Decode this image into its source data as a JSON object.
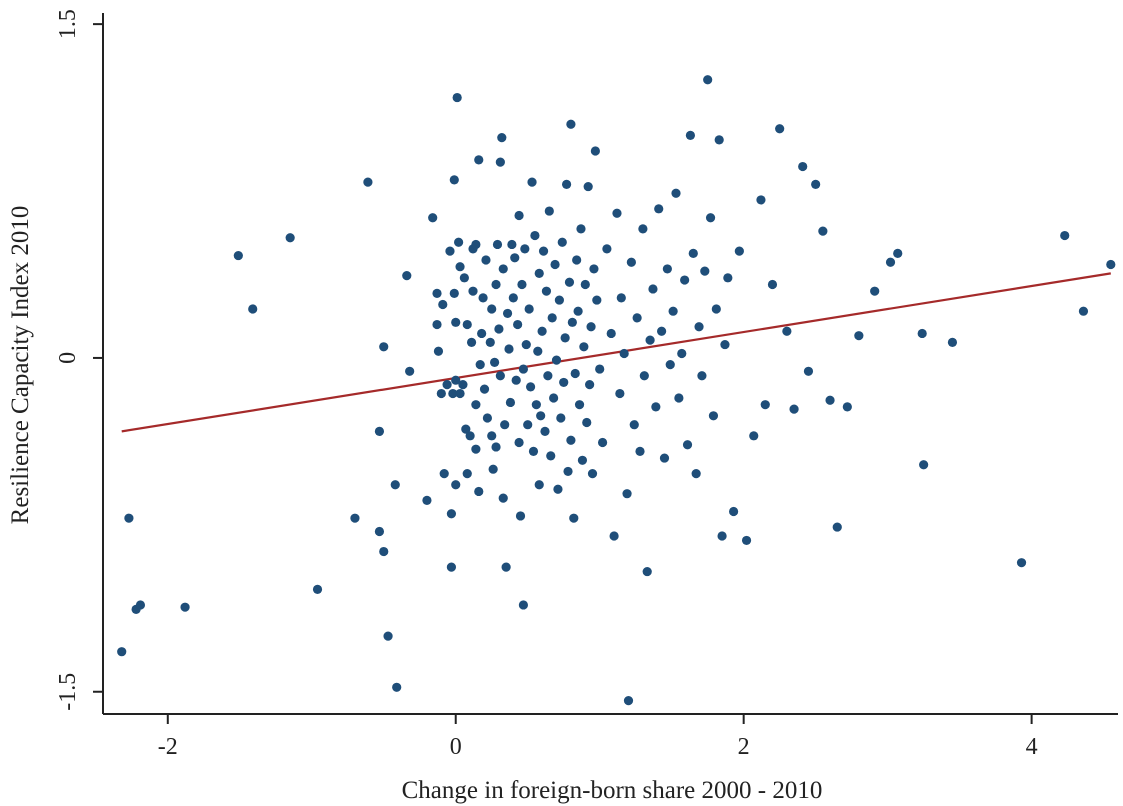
{
  "chart_data": {
    "type": "scatter",
    "xlabel": "Change in foreign-born share 2000 - 2010",
    "ylabel": "Resilience Capacity Index 2010",
    "xlim": [
      -2.45,
      4.6
    ],
    "ylim": [
      -1.6,
      1.55
    ],
    "x_ticks": [
      {
        "value": -2,
        "label": "-2"
      },
      {
        "value": 0,
        "label": "0"
      },
      {
        "value": 2,
        "label": "2"
      },
      {
        "value": 4,
        "label": "4"
      }
    ],
    "y_ticks": [
      {
        "value": -1.5,
        "label": "-1.5"
      },
      {
        "value": 0,
        "label": "0"
      },
      {
        "value": 1.5,
        "label": "1.5"
      }
    ],
    "grid": false,
    "legend": "none",
    "colors": {
      "points": "#1f4e79",
      "fit_line": "#a52a2a",
      "axis": "#222222"
    },
    "fit_line": {
      "x": [
        -2.32,
        4.55
      ],
      "y": [
        -0.33,
        0.38
      ]
    },
    "points": [
      [
        -2.32,
        -1.32
      ],
      [
        -2.27,
        -0.72
      ],
      [
        -2.22,
        -1.13
      ],
      [
        -2.19,
        -1.11
      ],
      [
        -1.88,
        -1.12
      ],
      [
        -1.51,
        0.46
      ],
      [
        -1.41,
        0.22
      ],
      [
        -1.15,
        0.54
      ],
      [
        -0.96,
        -1.04
      ],
      [
        -0.7,
        -0.72
      ],
      [
        -0.61,
        0.79
      ],
      [
        -0.53,
        -0.33
      ],
      [
        -0.53,
        -0.78
      ],
      [
        -0.5,
        0.05
      ],
      [
        -0.5,
        -0.87
      ],
      [
        -0.47,
        -1.25
      ],
      [
        -0.42,
        -0.57
      ],
      [
        -0.41,
        -1.48
      ],
      [
        -0.34,
        0.37
      ],
      [
        -0.32,
        -0.06
      ],
      [
        -0.2,
        -0.64
      ],
      [
        -0.16,
        0.63
      ],
      [
        -0.13,
        0.29
      ],
      [
        -0.13,
        0.15
      ],
      [
        -0.12,
        0.03
      ],
      [
        -0.1,
        -0.16
      ],
      [
        -0.09,
        0.24
      ],
      [
        -0.08,
        -0.52
      ],
      [
        -0.06,
        -0.12
      ],
      [
        -0.04,
        0.48
      ],
      [
        -0.03,
        -0.94
      ],
      [
        -0.03,
        -0.7
      ],
      [
        -0.02,
        -0.16
      ],
      [
        -0.01,
        0.29
      ],
      [
        -0.01,
        0.8
      ],
      [
        0.0,
        0.16
      ],
      [
        0.0,
        -0.1
      ],
      [
        0.0,
        -0.57
      ],
      [
        0.01,
        1.17
      ],
      [
        0.02,
        0.52
      ],
      [
        0.03,
        -0.16
      ],
      [
        0.03,
        0.41
      ],
      [
        0.05,
        -0.12
      ],
      [
        0.06,
        0.36
      ],
      [
        0.07,
        -0.32
      ],
      [
        0.08,
        0.15
      ],
      [
        0.08,
        -0.52
      ],
      [
        0.1,
        -0.35
      ],
      [
        0.11,
        0.07
      ],
      [
        0.12,
        0.3
      ],
      [
        0.12,
        0.49
      ],
      [
        0.14,
        -0.21
      ],
      [
        0.14,
        -0.41
      ],
      [
        0.14,
        0.51
      ],
      [
        0.16,
        0.89
      ],
      [
        0.16,
        -0.6
      ],
      [
        0.17,
        -0.03
      ],
      [
        0.18,
        0.11
      ],
      [
        0.19,
        0.27
      ],
      [
        0.2,
        -0.14
      ],
      [
        0.21,
        0.44
      ],
      [
        0.22,
        -0.27
      ],
      [
        0.24,
        0.07
      ],
      [
        0.25,
        0.22
      ],
      [
        0.25,
        -0.35
      ],
      [
        0.26,
        -0.5
      ],
      [
        0.27,
        -0.02
      ],
      [
        0.28,
        0.33
      ],
      [
        0.28,
        -0.4
      ],
      [
        0.29,
        0.51
      ],
      [
        0.3,
        0.13
      ],
      [
        0.31,
        -0.08
      ],
      [
        0.31,
        0.88
      ],
      [
        0.32,
        0.99
      ],
      [
        0.33,
        0.4
      ],
      [
        0.33,
        -0.63
      ],
      [
        0.34,
        -0.3
      ],
      [
        0.35,
        -0.94
      ],
      [
        0.36,
        0.2
      ],
      [
        0.37,
        0.04
      ],
      [
        0.38,
        -0.2
      ],
      [
        0.39,
        0.51
      ],
      [
        0.4,
        0.27
      ],
      [
        0.41,
        0.45
      ],
      [
        0.42,
        -0.1
      ],
      [
        0.43,
        0.15
      ],
      [
        0.44,
        -0.38
      ],
      [
        0.44,
        0.64
      ],
      [
        0.45,
        -0.71
      ],
      [
        0.46,
        0.33
      ],
      [
        0.47,
        -1.11
      ],
      [
        0.47,
        -0.05
      ],
      [
        0.48,
        0.49
      ],
      [
        0.49,
        0.06
      ],
      [
        0.5,
        -0.3
      ],
      [
        0.51,
        0.22
      ],
      [
        0.52,
        -0.13
      ],
      [
        0.53,
        0.79
      ],
      [
        0.54,
        -0.42
      ],
      [
        0.55,
        0.55
      ],
      [
        0.56,
        -0.21
      ],
      [
        0.57,
        0.03
      ],
      [
        0.58,
        0.38
      ],
      [
        0.58,
        -0.57
      ],
      [
        0.59,
        -0.26
      ],
      [
        0.6,
        0.12
      ],
      [
        0.61,
        0.48
      ],
      [
        0.62,
        -0.33
      ],
      [
        0.63,
        0.3
      ],
      [
        0.64,
        -0.08
      ],
      [
        0.65,
        0.66
      ],
      [
        0.66,
        -0.44
      ],
      [
        0.67,
        0.18
      ],
      [
        0.68,
        -0.18
      ],
      [
        0.69,
        0.42
      ],
      [
        0.7,
        -0.01
      ],
      [
        0.71,
        -0.59
      ],
      [
        0.72,
        0.26
      ],
      [
        0.73,
        -0.27
      ],
      [
        0.74,
        0.52
      ],
      [
        0.75,
        -0.11
      ],
      [
        0.76,
        0.09
      ],
      [
        0.77,
        0.78
      ],
      [
        0.78,
        -0.51
      ],
      [
        0.79,
        0.34
      ],
      [
        0.8,
        -0.37
      ],
      [
        0.8,
        1.05
      ],
      [
        0.81,
        0.16
      ],
      [
        0.82,
        -0.72
      ],
      [
        0.83,
        -0.07
      ],
      [
        0.84,
        0.44
      ],
      [
        0.85,
        0.21
      ],
      [
        0.86,
        -0.21
      ],
      [
        0.87,
        0.58
      ],
      [
        0.88,
        -0.46
      ],
      [
        0.89,
        0.05
      ],
      [
        0.9,
        0.33
      ],
      [
        0.91,
        -0.29
      ],
      [
        0.92,
        0.77
      ],
      [
        0.93,
        -0.12
      ],
      [
        0.94,
        0.14
      ],
      [
        0.95,
        -0.52
      ],
      [
        0.96,
        0.4
      ],
      [
        0.97,
        0.93
      ],
      [
        0.98,
        0.26
      ],
      [
        1.0,
        -0.05
      ],
      [
        1.02,
        -0.38
      ],
      [
        1.05,
        0.49
      ],
      [
        1.08,
        0.11
      ],
      [
        1.1,
        -0.8
      ],
      [
        1.12,
        0.65
      ],
      [
        1.14,
        -0.16
      ],
      [
        1.15,
        0.27
      ],
      [
        1.17,
        0.02
      ],
      [
        1.19,
        -0.61
      ],
      [
        1.2,
        -1.54
      ],
      [
        1.22,
        0.43
      ],
      [
        1.24,
        -0.3
      ],
      [
        1.26,
        0.18
      ],
      [
        1.28,
        -0.42
      ],
      [
        1.3,
        0.58
      ],
      [
        1.31,
        -0.08
      ],
      [
        1.33,
        -0.96
      ],
      [
        1.35,
        0.08
      ],
      [
        1.37,
        0.31
      ],
      [
        1.39,
        -0.22
      ],
      [
        1.41,
        0.67
      ],
      [
        1.43,
        0.12
      ],
      [
        1.45,
        -0.45
      ],
      [
        1.47,
        0.4
      ],
      [
        1.49,
        -0.03
      ],
      [
        1.51,
        0.21
      ],
      [
        1.53,
        0.74
      ],
      [
        1.55,
        -0.18
      ],
      [
        1.57,
        0.02
      ],
      [
        1.59,
        0.35
      ],
      [
        1.61,
        -0.39
      ],
      [
        1.63,
        1.0
      ],
      [
        1.65,
        0.47
      ],
      [
        1.67,
        -0.52
      ],
      [
        1.69,
        0.14
      ],
      [
        1.71,
        -0.08
      ],
      [
        1.73,
        0.39
      ],
      [
        1.75,
        1.25
      ],
      [
        1.77,
        0.63
      ],
      [
        1.79,
        -0.26
      ],
      [
        1.81,
        0.22
      ],
      [
        1.83,
        0.98
      ],
      [
        1.85,
        -0.8
      ],
      [
        1.87,
        0.06
      ],
      [
        1.89,
        0.36
      ],
      [
        1.93,
        -0.69
      ],
      [
        1.97,
        0.48
      ],
      [
        2.02,
        -0.82
      ],
      [
        2.07,
        -0.35
      ],
      [
        2.12,
        0.71
      ],
      [
        2.15,
        -0.21
      ],
      [
        2.2,
        0.33
      ],
      [
        2.25,
        1.03
      ],
      [
        2.3,
        0.12
      ],
      [
        2.35,
        -0.23
      ],
      [
        2.41,
        0.86
      ],
      [
        2.45,
        -0.06
      ],
      [
        2.5,
        0.78
      ],
      [
        2.55,
        0.57
      ],
      [
        2.6,
        -0.19
      ],
      [
        2.65,
        -0.76
      ],
      [
        2.72,
        -0.22
      ],
      [
        2.8,
        0.1
      ],
      [
        2.91,
        0.3
      ],
      [
        3.02,
        0.43
      ],
      [
        3.07,
        0.47
      ],
      [
        3.24,
        0.11
      ],
      [
        3.25,
        -0.48
      ],
      [
        3.45,
        0.07
      ],
      [
        3.93,
        -0.92
      ],
      [
        4.23,
        0.55
      ],
      [
        4.36,
        0.21
      ],
      [
        4.55,
        0.42
      ]
    ]
  }
}
